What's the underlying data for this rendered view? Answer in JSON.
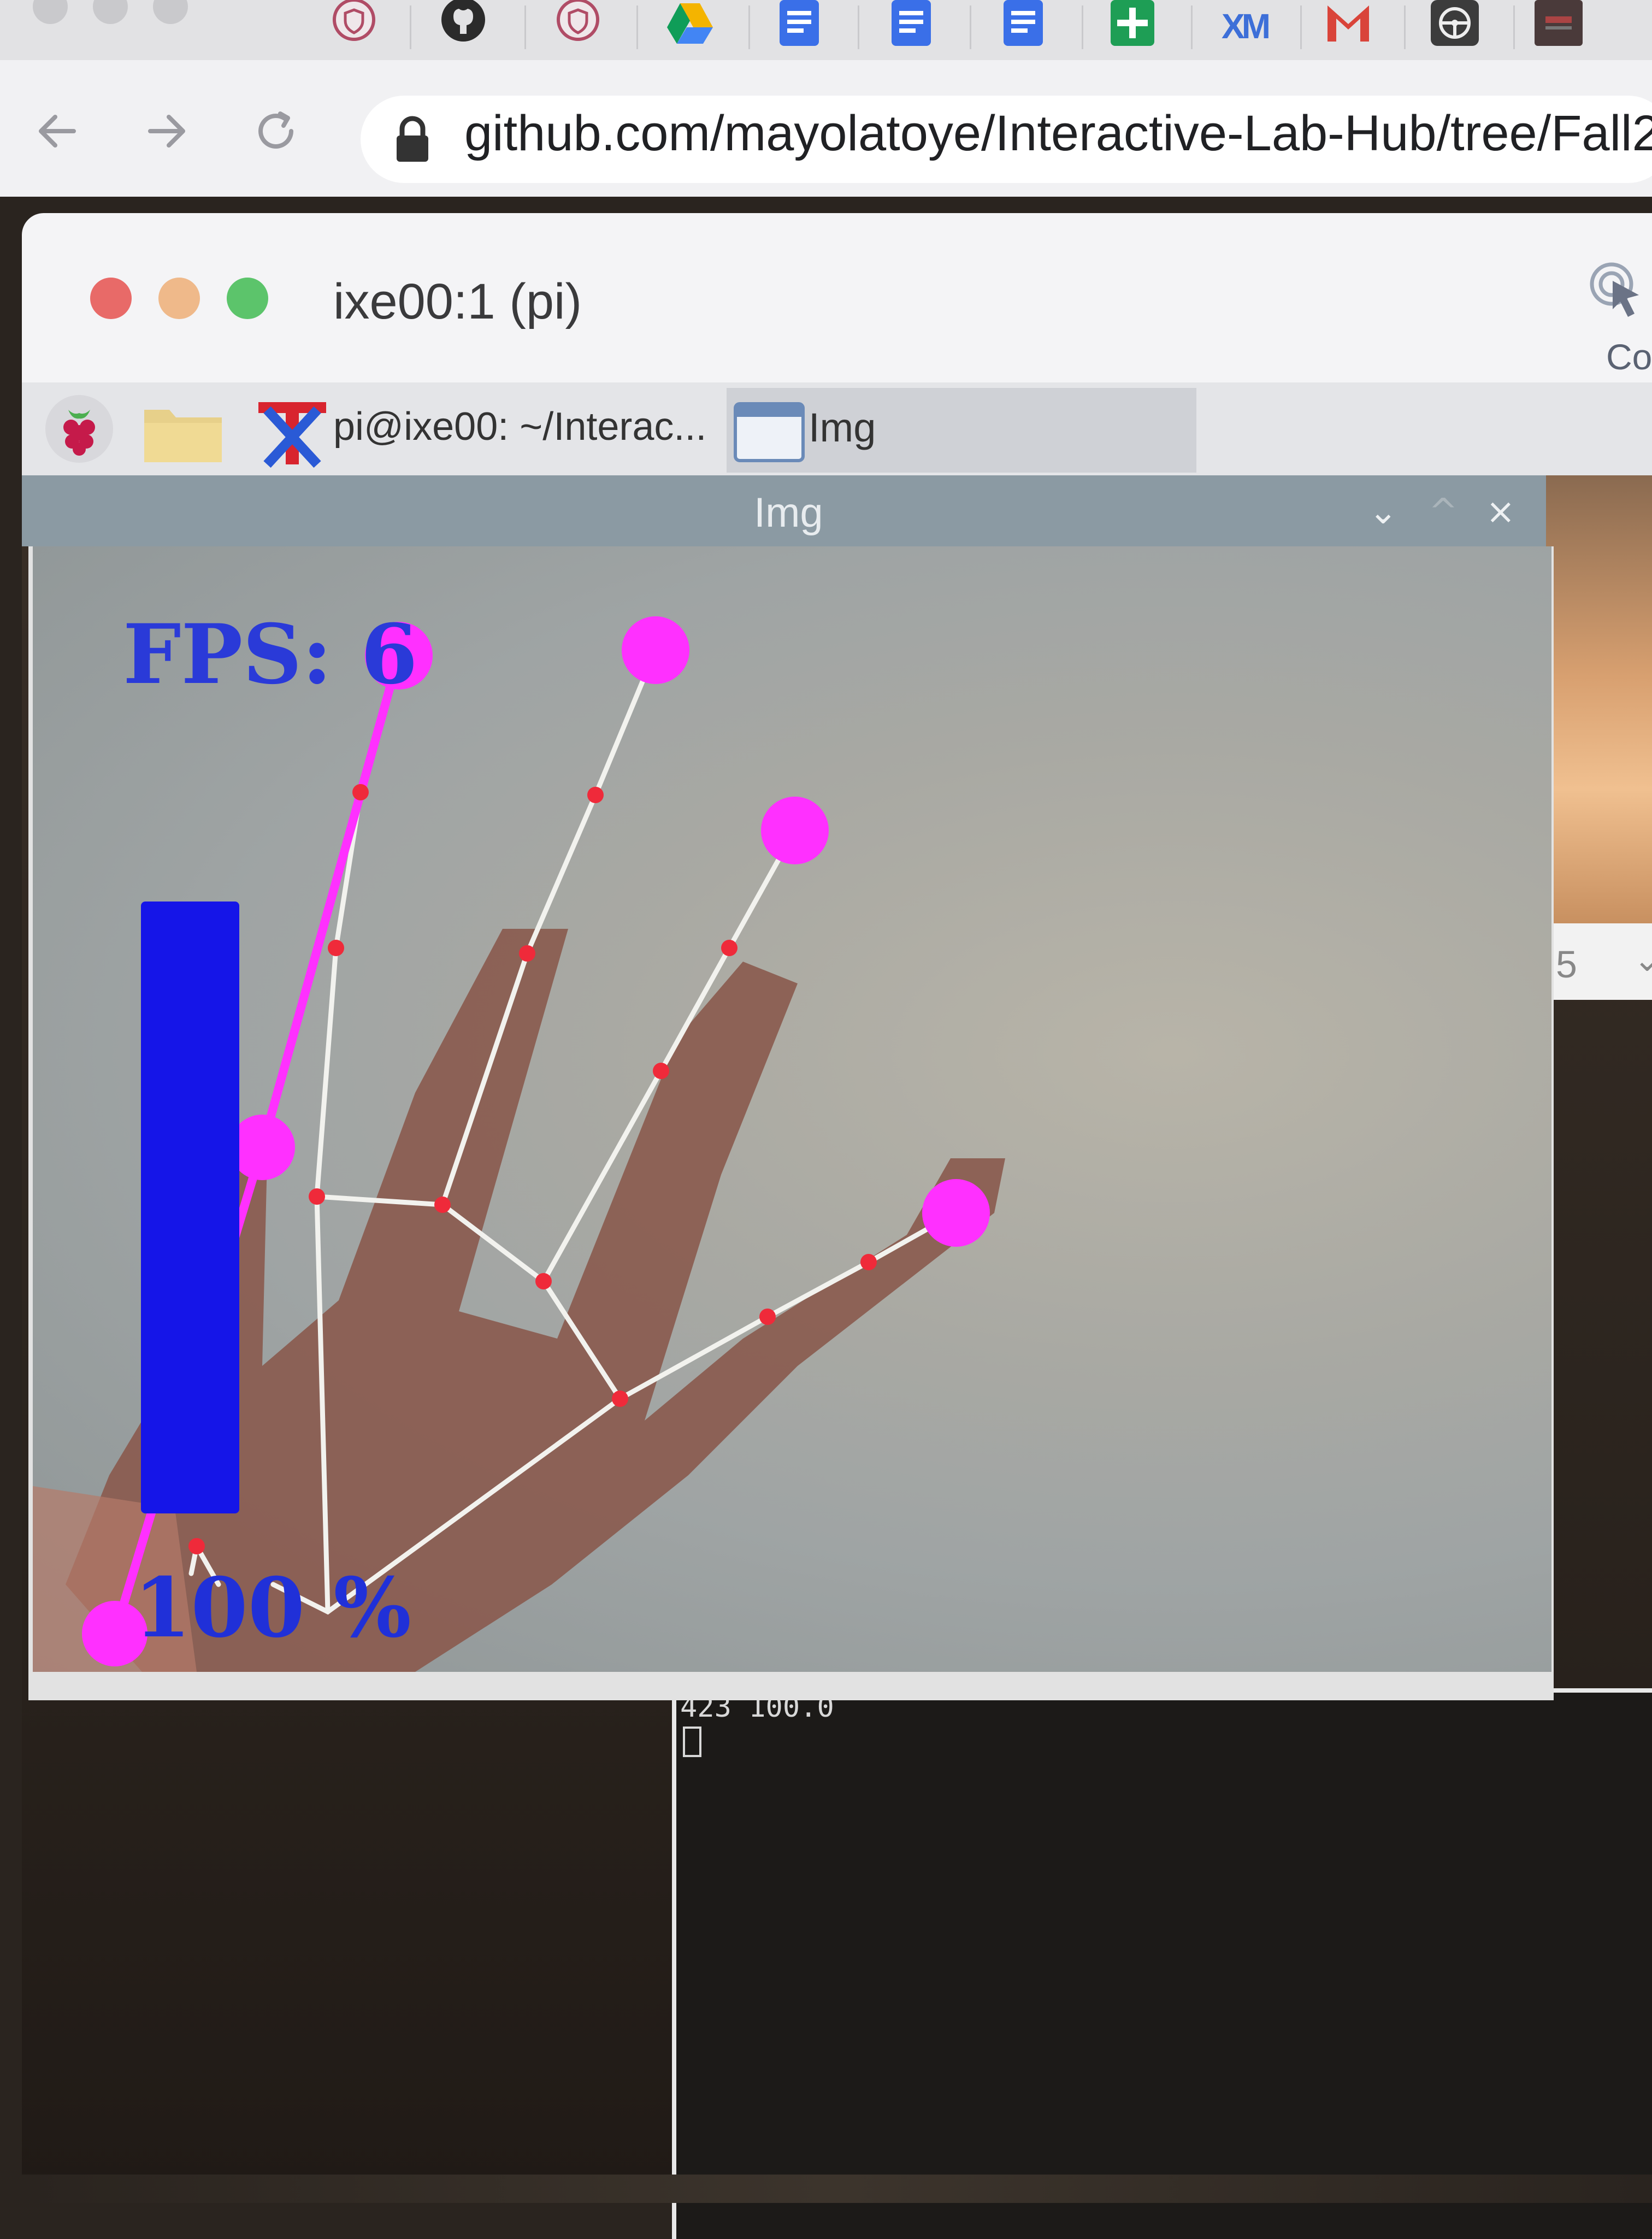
{
  "browser": {
    "url": "github.com/mayolatoye/Interactive-Lab-Hub/tree/Fall2",
    "bookmark_icons": [
      "shield-icon",
      "github-icon",
      "shield-icon",
      "google-drive-icon",
      "google-docs-icon",
      "google-docs-icon",
      "google-docs-icon",
      "google-sheets-icon",
      "xm-logo-icon",
      "gmail-icon",
      "steering-wheel-icon",
      "app-icon"
    ],
    "xm_label": "XM"
  },
  "vnc_window": {
    "title": "ixe00:1 (pi)",
    "toolbar_partial": "Co"
  },
  "taskbar": {
    "terminal_label": "pi@ixe00: ~/Interac...",
    "img_label": "Img"
  },
  "img_window": {
    "title": "Img",
    "controls": {
      "minimize": "⌄",
      "maximize": "^",
      "close": "×"
    },
    "overlay": {
      "fps_text": "FPS: 6",
      "volume_percent_text": "100 %",
      "volume_level": 1.0
    }
  },
  "background_window": {
    "number": "5"
  },
  "terminal": {
    "output": "423 100.0"
  },
  "colors": {
    "landmark": "#ff30ff",
    "joint": "#ef2a3a",
    "bone": "#f2f2ee",
    "overlay_text": "#2a3ad8",
    "volume_bar": "#1515e8"
  }
}
